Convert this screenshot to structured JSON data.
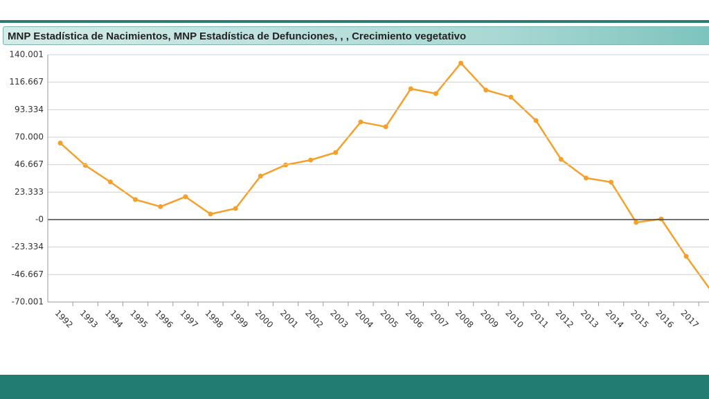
{
  "chart_data": {
    "type": "line",
    "title": "MNP Estadística de Nacimientos, MNP Estadística de Defunciones, , , Crecimiento vegetativo",
    "categories": [
      "1992",
      "1993",
      "1994",
      "1995",
      "1996",
      "1997",
      "1998",
      "1999",
      "2000",
      "2001",
      "2002",
      "2003",
      "2004",
      "2005",
      "2006",
      "2007",
      "2008",
      "2009",
      "2010",
      "2011",
      "2012",
      "2013",
      "2014",
      "2015",
      "2016",
      "2017",
      null
    ],
    "series": [
      {
        "color": "#f4a12b",
        "values": [
          65000,
          46000,
          32000,
          17000,
          11000,
          19400,
          4700,
          9400,
          37000,
          46400,
          50600,
          57000,
          82900,
          78800,
          111100,
          107000,
          132900,
          110000,
          104000,
          84100,
          51200,
          35300,
          31800,
          -2400,
          500,
          -31200,
          -60600
        ]
      }
    ],
    "ylim": [
      -70001,
      140001
    ],
    "yticks": [
      {
        "value": 140001,
        "label": "140.001"
      },
      {
        "value": 116667,
        "label": "116.667"
      },
      {
        "value": 93334,
        "label": "93.334"
      },
      {
        "value": 70000,
        "label": "70.000"
      },
      {
        "value": 46667,
        "label": "46.667"
      },
      {
        "value": 23333,
        "label": "23.333"
      },
      {
        "value": 0,
        "label": "-0"
      },
      {
        "value": -23334,
        "label": "-23.334"
      },
      {
        "value": -46667,
        "label": "-46.667"
      },
      {
        "value": -70001,
        "label": "-70.001"
      }
    ],
    "grid": true
  }
}
